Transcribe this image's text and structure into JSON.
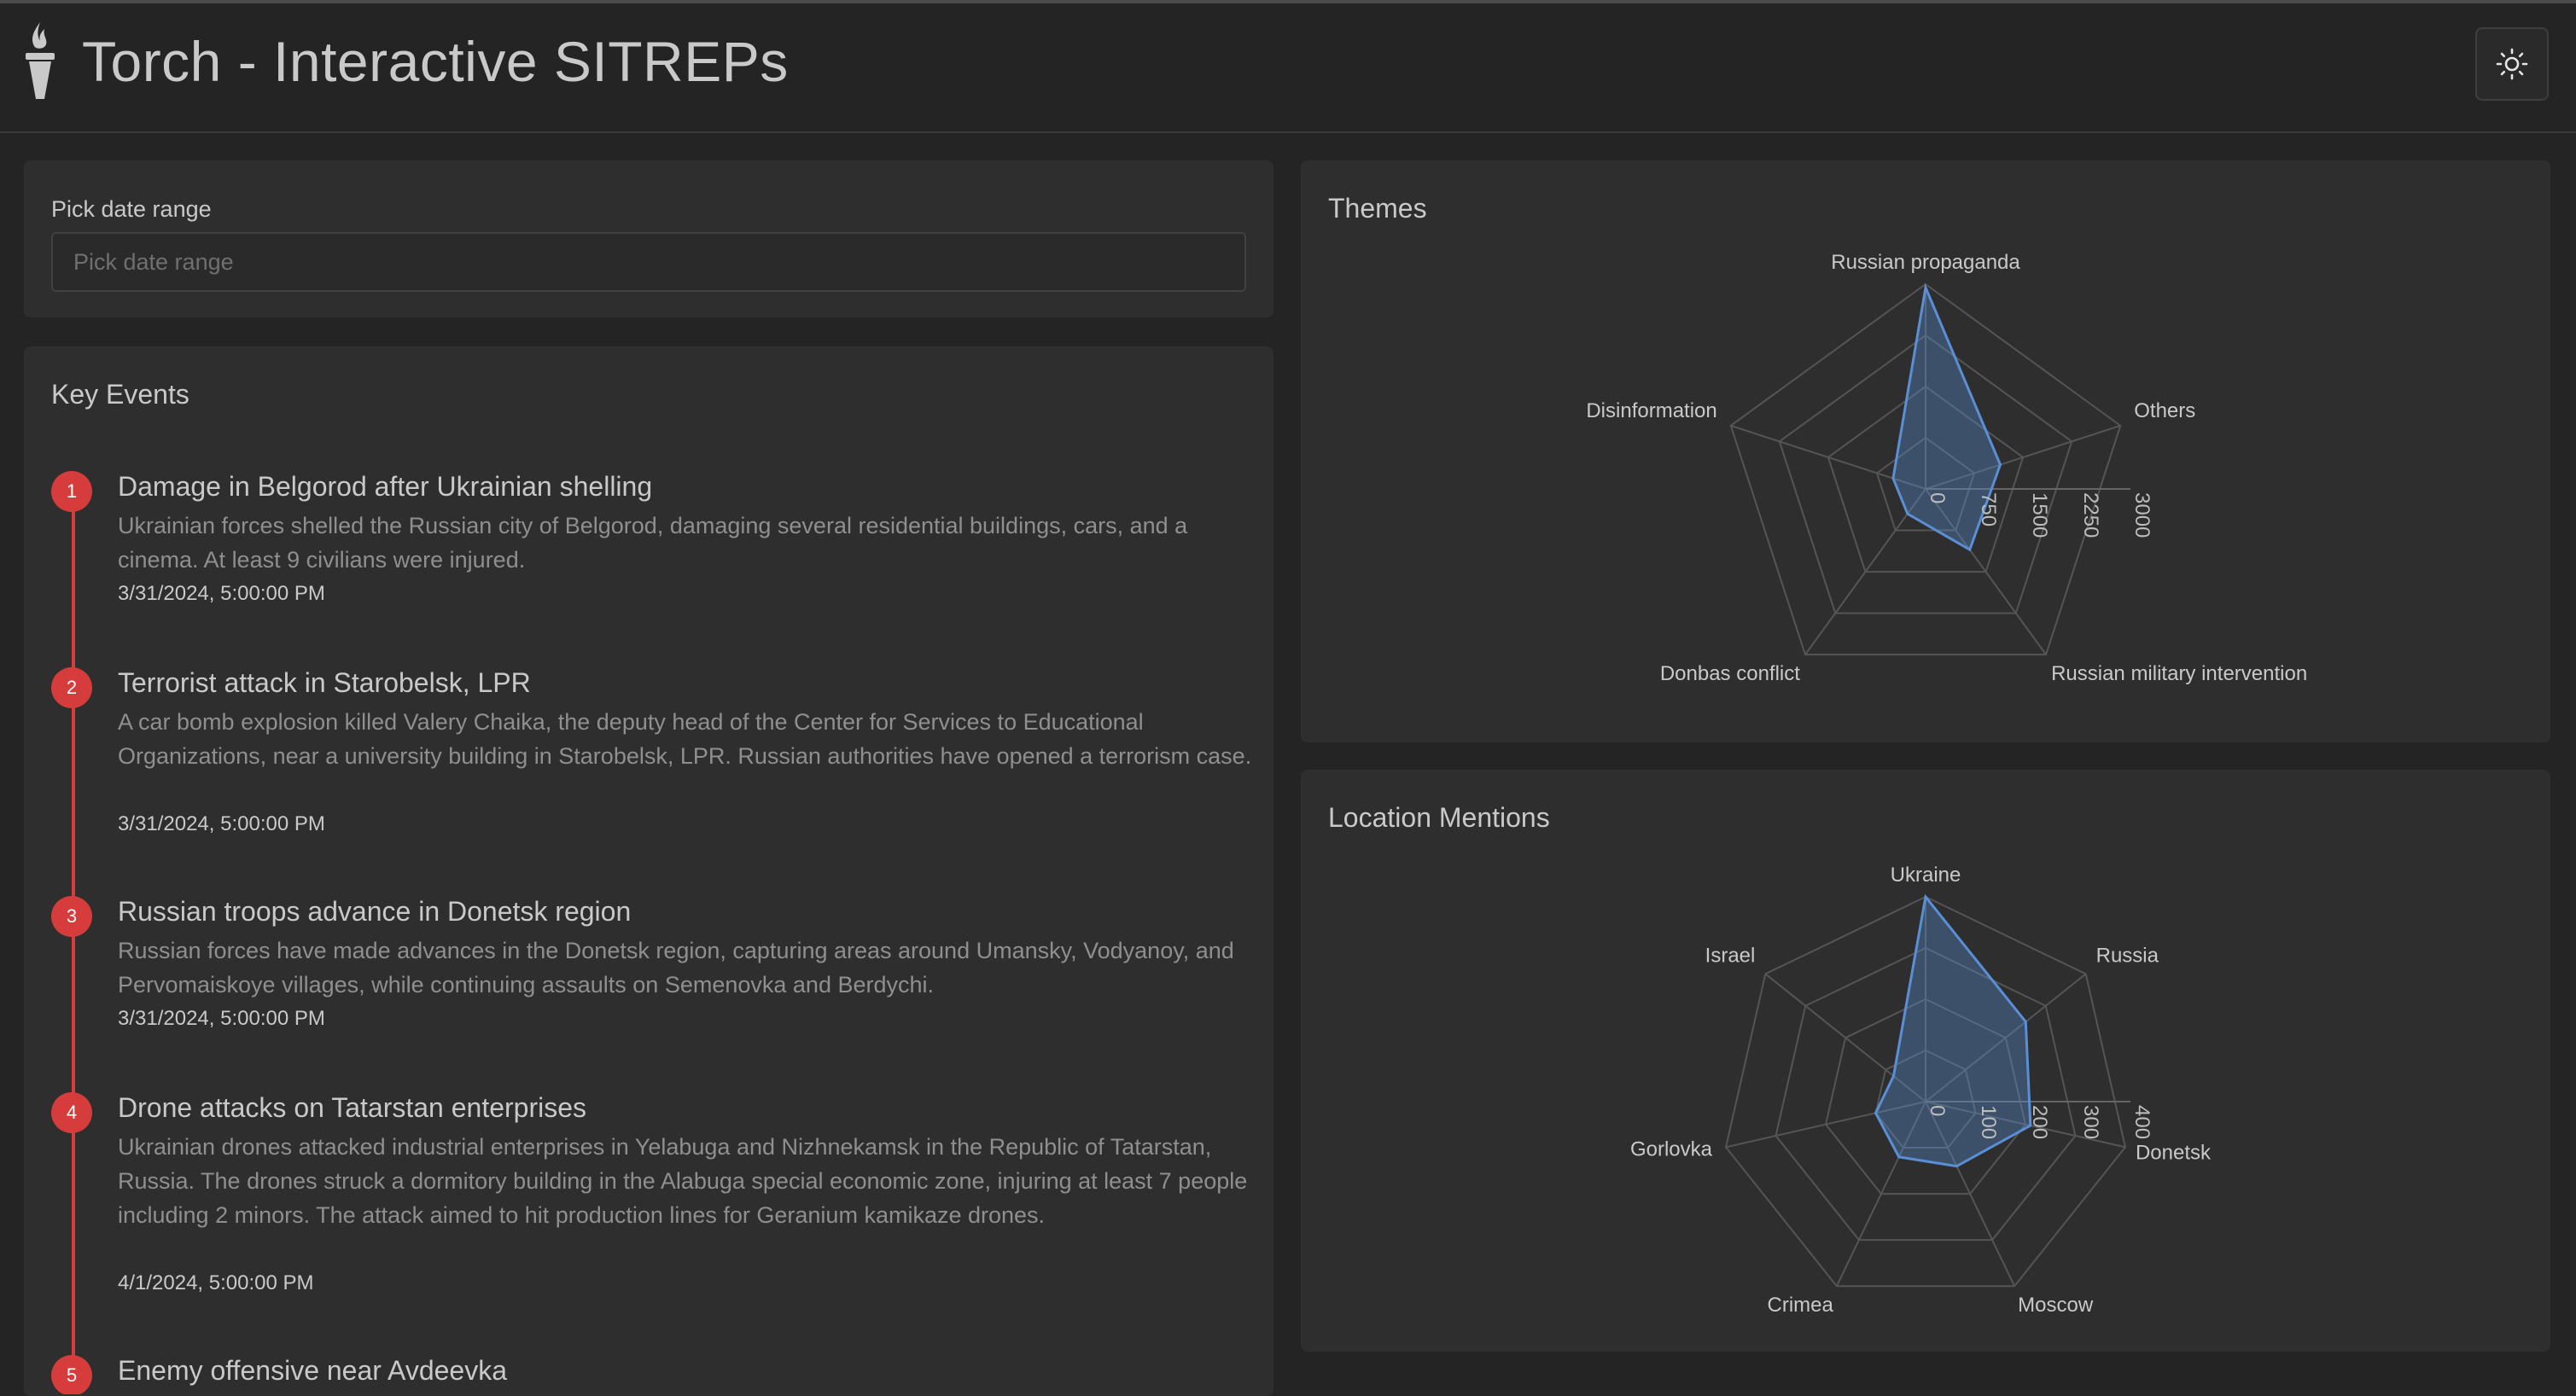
{
  "header": {
    "title": "Torch - Interactive SITREPs",
    "logo_icon": "torch-icon",
    "theme_toggle_icon": "sun-icon"
  },
  "date_picker": {
    "label": "Pick date range",
    "placeholder": "Pick date range"
  },
  "key_events": {
    "title": "Key Events",
    "items": [
      {
        "num": "1",
        "title": "Damage in Belgorod after Ukrainian shelling",
        "description": "Ukrainian forces shelled the Russian city of Belgorod, damaging several residential buildings, cars, and a cinema. At least 9 civilians were injured.",
        "time": "3/31/2024, 5:00:00 PM"
      },
      {
        "num": "2",
        "title": "Terrorist attack in Starobelsk, LPR",
        "description": "A car bomb explosion killed Valery Chaika, the deputy head of the Center for Services to Educational Organizations, near a university building in Starobelsk, LPR. Russian authorities have opened a terrorism case.",
        "time": "3/31/2024, 5:00:00 PM"
      },
      {
        "num": "3",
        "title": "Russian troops advance in Donetsk region",
        "description": "Russian forces have made advances in the Donetsk region, capturing areas around Umansky, Vodyanoy, and Pervomaiskoye villages, while continuing assaults on Semenovka and Berdychi.",
        "time": "3/31/2024, 5:00:00 PM"
      },
      {
        "num": "4",
        "title": "Drone attacks on Tatarstan enterprises",
        "description": "Ukrainian drones attacked industrial enterprises in Yelabuga and Nizhnekamsk in the Republic of Tatarstan, Russia. The drones struck a dormitory building in the Alabuga special economic zone, injuring at least 7 people including 2 minors. The attack aimed to hit production lines for Geranium kamikaze drones.",
        "time": "4/1/2024, 5:00:00 PM"
      },
      {
        "num": "5",
        "title": "Enemy offensive near Avdeevka",
        "description": "",
        "time": ""
      }
    ]
  },
  "chart_data": [
    {
      "type": "radar",
      "title": "Themes",
      "categories": [
        "Russian propaganda",
        "Others",
        "Russian military intervention",
        "Donbas conflict",
        "Disinformation"
      ],
      "values": [
        2950,
        1150,
        1100,
        450,
        500
      ],
      "radial_ticks": [
        "0",
        "750",
        "1500",
        "2250",
        "3000"
      ],
      "rmax": 3000,
      "color": "#5a8fd6"
    },
    {
      "type": "radar",
      "title": "Location Mentions",
      "categories": [
        "Ukraine",
        "Russia",
        "Donetsk",
        "Moscow",
        "Crimea",
        "Gorlovka",
        "Israel"
      ],
      "values": [
        400,
        250,
        210,
        140,
        120,
        100,
        80
      ],
      "radial_ticks": [
        "0",
        "100",
        "200",
        "300",
        "400"
      ],
      "rmax": 400,
      "color": "#5a8fd6"
    }
  ]
}
